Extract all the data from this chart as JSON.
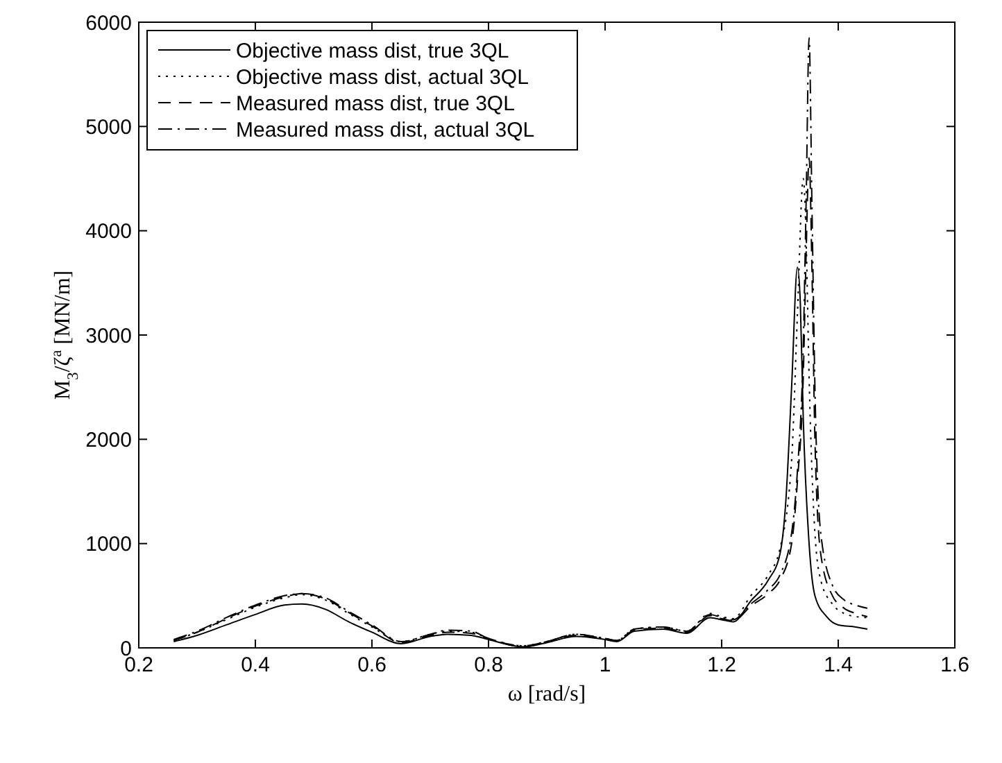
{
  "chart_data": {
    "type": "line",
    "xlabel": "ω  [rad/s]",
    "ylabel": "M$_{3}$/ζ$^{a}$  [MN/m]",
    "xlim": [
      0.2,
      1.6
    ],
    "ylim": [
      0,
      6000
    ],
    "xticks": [
      0.2,
      0.4,
      0.6,
      0.8,
      1,
      1.2,
      1.4,
      1.6
    ],
    "yticks": [
      0,
      1000,
      2000,
      3000,
      4000,
      5000,
      6000
    ],
    "legend": "top left",
    "grid": false,
    "series": [
      {
        "name": "Objective mass dist, true 3QL",
        "color": "#000000",
        "line_style": "solid",
        "x": [
          0.26,
          0.3,
          0.35,
          0.4,
          0.45,
          0.48,
          0.52,
          0.56,
          0.6,
          0.65,
          0.7,
          0.73,
          0.77,
          0.8,
          0.86,
          0.9,
          0.95,
          1.0,
          1.02,
          1.05,
          1.1,
          1.14,
          1.18,
          1.2,
          1.22,
          1.25,
          1.28,
          1.3,
          1.31,
          1.32,
          1.33,
          1.335,
          1.34,
          1.35,
          1.36,
          1.38,
          1.4,
          1.43,
          1.45
        ],
        "values": [
          60,
          120,
          220,
          320,
          410,
          420,
          370,
          250,
          150,
          40,
          110,
          130,
          120,
          80,
          10,
          50,
          110,
          80,
          60,
          160,
          180,
          140,
          290,
          270,
          250,
          450,
          650,
          900,
          1400,
          2500,
          3650,
          3300,
          2200,
          1000,
          500,
          300,
          220,
          200,
          180
        ]
      },
      {
        "name": "Objective mass dist, actual 3QL",
        "color": "#000000",
        "line_style": "dotted",
        "x": [
          0.26,
          0.3,
          0.35,
          0.4,
          0.45,
          0.48,
          0.52,
          0.56,
          0.6,
          0.65,
          0.7,
          0.73,
          0.77,
          0.8,
          0.86,
          0.9,
          0.95,
          1.0,
          1.02,
          1.05,
          1.1,
          1.14,
          1.18,
          1.2,
          1.22,
          1.25,
          1.28,
          1.3,
          1.32,
          1.33,
          1.34,
          1.345,
          1.35,
          1.36,
          1.37,
          1.39,
          1.41,
          1.43,
          1.45
        ],
        "values": [
          70,
          150,
          270,
          390,
          480,
          510,
          460,
          330,
          200,
          60,
          130,
          160,
          150,
          90,
          20,
          60,
          130,
          90,
          70,
          180,
          200,
          160,
          330,
          300,
          280,
          500,
          700,
          950,
          1800,
          3200,
          4500,
          3900,
          2600,
          1100,
          650,
          420,
          330,
          300,
          290
        ]
      },
      {
        "name": "Measured mass dist, true 3QL",
        "color": "#000000",
        "line_style": "dashed",
        "x": [
          0.26,
          0.3,
          0.35,
          0.4,
          0.45,
          0.48,
          0.52,
          0.56,
          0.6,
          0.65,
          0.7,
          0.73,
          0.77,
          0.8,
          0.86,
          0.9,
          0.95,
          1.0,
          1.02,
          1.05,
          1.1,
          1.14,
          1.18,
          1.2,
          1.22,
          1.25,
          1.28,
          1.3,
          1.32,
          1.33,
          1.34,
          1.345,
          1.35,
          1.355,
          1.36,
          1.37,
          1.39,
          1.41,
          1.43,
          1.45
        ],
        "values": [
          70,
          150,
          280,
          400,
          490,
          520,
          470,
          340,
          210,
          50,
          120,
          150,
          140,
          90,
          10,
          60,
          120,
          90,
          70,
          170,
          190,
          150,
          310,
          280,
          260,
          400,
          520,
          650,
          1000,
          1600,
          2600,
          3800,
          4700,
          3600,
          2000,
          900,
          500,
          380,
          330,
          300
        ]
      },
      {
        "name": "Measured mass dist, actual 3QL",
        "color": "#000000",
        "line_style": "dashdot",
        "x": [
          0.26,
          0.3,
          0.35,
          0.4,
          0.45,
          0.48,
          0.52,
          0.56,
          0.6,
          0.65,
          0.7,
          0.73,
          0.77,
          0.8,
          0.86,
          0.9,
          0.95,
          1.0,
          1.02,
          1.05,
          1.1,
          1.14,
          1.18,
          1.2,
          1.22,
          1.25,
          1.28,
          1.3,
          1.32,
          1.33,
          1.34,
          1.345,
          1.35,
          1.355,
          1.36,
          1.37,
          1.39,
          1.41,
          1.43,
          1.45
        ],
        "values": [
          80,
          160,
          290,
          410,
          500,
          520,
          480,
          350,
          220,
          60,
          130,
          170,
          160,
          90,
          20,
          60,
          130,
          90,
          70,
          180,
          200,
          160,
          320,
          290,
          270,
          420,
          560,
          700,
          1100,
          1700,
          2900,
          4300,
          5850,
          4200,
          2500,
          1100,
          600,
          460,
          410,
          380
        ]
      }
    ]
  }
}
